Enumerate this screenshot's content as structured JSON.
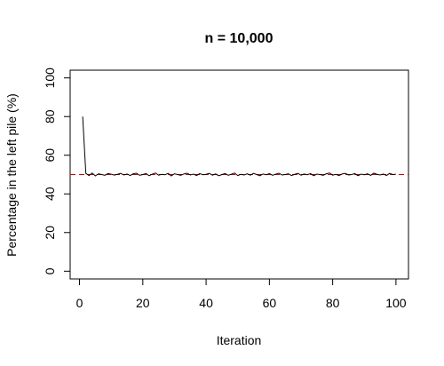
{
  "chart_data": {
    "type": "line",
    "title": "n = 10,000",
    "xlabel": "Iteration",
    "ylabel": "Percentage in the left pile (%)",
    "xlim": [
      1,
      100
    ],
    "ylim": [
      0,
      100
    ],
    "xticks": [
      0,
      20,
      40,
      60,
      80,
      100
    ],
    "yticks": [
      0,
      20,
      40,
      60,
      80,
      100
    ],
    "grid": false,
    "reference_line": {
      "y": 50,
      "color": "#cc0000",
      "style": "dashed"
    },
    "series": [
      {
        "color": "#000000",
        "x": [
          1,
          2,
          3,
          4,
          5,
          6,
          7,
          8,
          9,
          10,
          11,
          12,
          13,
          14,
          15,
          16,
          17,
          18,
          19,
          20,
          21,
          22,
          23,
          24,
          25,
          26,
          27,
          28,
          29,
          30,
          31,
          32,
          33,
          34,
          35,
          36,
          37,
          38,
          39,
          40,
          41,
          42,
          43,
          44,
          45,
          46,
          47,
          48,
          49,
          50,
          51,
          52,
          53,
          54,
          55,
          56,
          57,
          58,
          59,
          60,
          61,
          62,
          63,
          64,
          65,
          66,
          67,
          68,
          69,
          70,
          71,
          72,
          73,
          74,
          75,
          76,
          77,
          78,
          79,
          80,
          81,
          82,
          83,
          84,
          85,
          86,
          87,
          88,
          89,
          90,
          91,
          92,
          93,
          94,
          95,
          96,
          97,
          98,
          99,
          100
        ],
        "y": [
          80,
          50.6,
          49.5,
          50.8,
          49.3,
          50.4,
          50.0,
          49.6,
          50.5,
          50.2,
          49.7,
          50.1,
          50.6,
          49.8,
          50.3,
          49.5,
          50.4,
          50.7,
          49.6,
          50.0,
          50.5,
          49.4,
          50.2,
          50.8,
          49.7,
          50.1,
          49.9,
          50.6,
          49.3,
          50.4,
          50.0,
          49.6,
          50.3,
          50.7,
          49.8,
          50.2,
          49.5,
          50.5,
          49.9,
          50.1,
          50.6,
          49.7,
          50.3,
          49.4,
          50.0,
          50.5,
          49.6,
          50.2,
          50.8,
          49.5,
          50.1,
          49.8,
          50.4,
          49.7,
          50.6,
          50.0,
          49.4,
          50.3,
          49.9,
          50.5,
          49.6,
          50.2,
          50.7,
          49.8,
          50.0,
          50.4,
          49.5,
          50.1,
          50.6,
          49.7,
          50.3,
          49.9,
          50.5,
          49.4,
          50.2,
          50.0,
          49.6,
          50.4,
          50.8,
          49.7,
          50.1,
          49.5,
          50.3,
          50.6,
          49.8,
          50.0,
          50.5,
          49.4,
          50.2,
          49.9,
          50.4,
          49.6,
          50.7,
          50.1,
          49.8,
          50.3,
          49.5,
          50.6,
          50.0,
          50.2
        ]
      }
    ]
  }
}
